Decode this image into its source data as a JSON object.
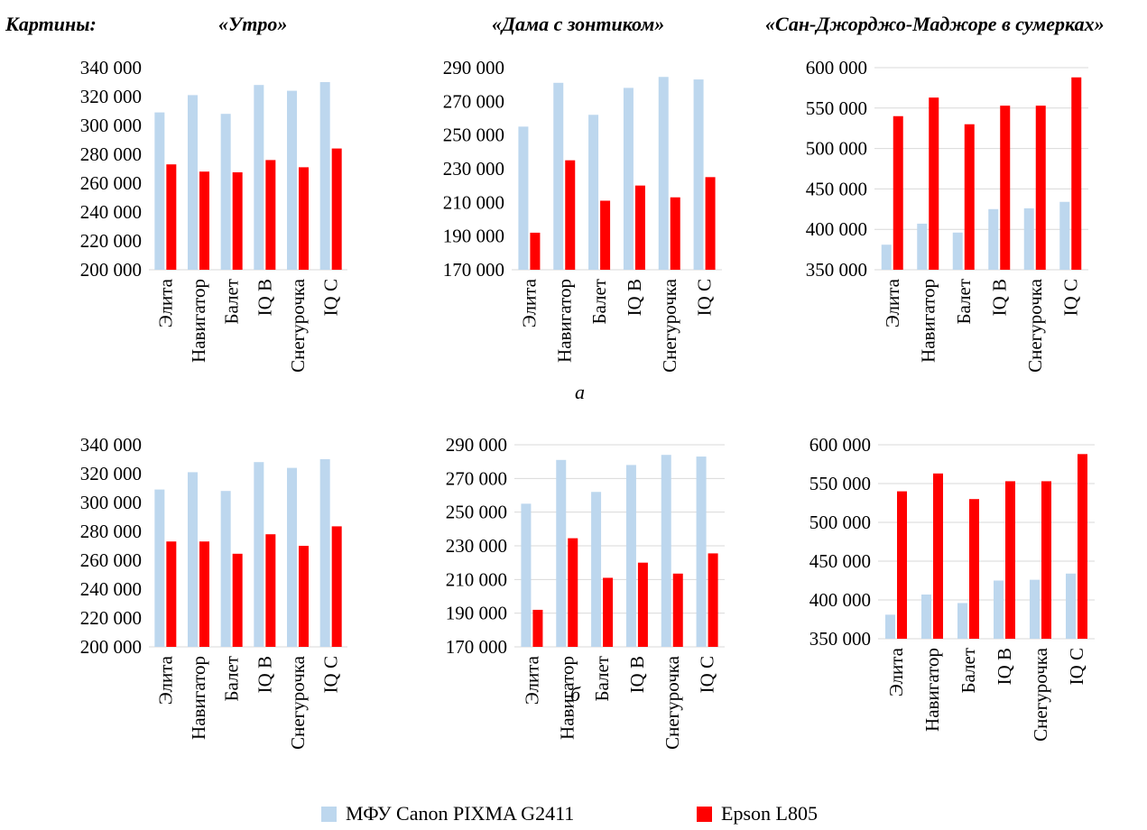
{
  "header": {
    "label": "Картины:",
    "titles": [
      "«Утро»",
      "«Дама с зонтиком»",
      "«Сан-Джорджо-Маджоре в сумерках»"
    ]
  },
  "panel_labels": {
    "a": "а",
    "b": "б"
  },
  "legend": [
    {
      "name": "МФУ Canon PIXMA G2411",
      "color": "#bdd7ee"
    },
    {
      "name": "Epson L805",
      "color": "#ff0000"
    }
  ],
  "chart_data": [
    {
      "type": "bar",
      "panel": "а",
      "title": "«Утро»",
      "categories": [
        "Элита",
        "Навигатор",
        "Балет",
        "IQ B",
        "Снегурочка",
        "IQ C"
      ],
      "ylim": [
        200000,
        340000
      ],
      "yticks": [
        "200 000",
        "220 000",
        "240 000",
        "260 000",
        "280 000",
        "300 000",
        "320 000",
        "340 000"
      ],
      "grid": false,
      "legend": "bottom",
      "series": [
        {
          "name": "МФУ Canon PIXMA G2411",
          "color": "#bdd7ee",
          "values": [
            309000,
            321000,
            308000,
            328000,
            324000,
            330000
          ]
        },
        {
          "name": "Epson L805",
          "color": "#ff0000",
          "values": [
            273000,
            268000,
            267500,
            276000,
            271000,
            284000
          ]
        }
      ]
    },
    {
      "type": "bar",
      "panel": "а",
      "title": "«Дама с зонтиком»",
      "categories": [
        "Элита",
        "Навигатор",
        "Балет",
        "IQ B",
        "Снегурочка",
        "IQ C"
      ],
      "ylim": [
        170000,
        290000
      ],
      "yticks": [
        "170 000",
        "190 000",
        "210 000",
        "230 000",
        "250 000",
        "270 000",
        "290 000"
      ],
      "grid": false,
      "legend": "bottom",
      "series": [
        {
          "name": "МФУ Canon PIXMA G2411",
          "color": "#bdd7ee",
          "values": [
            255000,
            281000,
            262000,
            278000,
            284500,
            283000
          ]
        },
        {
          "name": "Epson L805",
          "color": "#ff0000",
          "values": [
            192000,
            235000,
            211000,
            220000,
            213000,
            225000
          ]
        }
      ]
    },
    {
      "type": "bar",
      "panel": "а",
      "title": "«Сан-Джорджо-Маджоре в сумерках»",
      "categories": [
        "Элита",
        "Навигатор",
        "Балет",
        "IQ B",
        "Снегурочка",
        "IQ C"
      ],
      "ylim": [
        350000,
        600000
      ],
      "yticks": [
        "350 000",
        "400 000",
        "450 000",
        "500 000",
        "550 000",
        "600 000"
      ],
      "grid": true,
      "legend": "bottom",
      "series": [
        {
          "name": "МФУ Canon PIXMA G2411",
          "color": "#bdd7ee",
          "values": [
            381000,
            407000,
            396000,
            425000,
            426000,
            434000
          ]
        },
        {
          "name": "Epson L805",
          "color": "#ff0000",
          "values": [
            540000,
            563000,
            530000,
            553000,
            553000,
            588000
          ]
        }
      ]
    },
    {
      "type": "bar",
      "panel": "б",
      "title": "«Утро»",
      "categories": [
        "Элита",
        "Навигатор",
        "Балет",
        "IQ B",
        "Снегурочка",
        "IQ C"
      ],
      "ylim": [
        200000,
        340000
      ],
      "yticks": [
        "200 000",
        "220 000",
        "240 000",
        "260 000",
        "280 000",
        "300 000",
        "320 000",
        "340 000"
      ],
      "grid": false,
      "legend": "bottom",
      "series": [
        {
          "name": "МФУ Canon PIXMA G2411",
          "color": "#bdd7ee",
          "values": [
            309000,
            321000,
            308000,
            328000,
            324000,
            330000
          ]
        },
        {
          "name": "Epson L805",
          "color": "#ff0000",
          "values": [
            273000,
            273000,
            264500,
            278000,
            270000,
            283500
          ]
        }
      ]
    },
    {
      "type": "bar",
      "panel": "б",
      "title": "«Дама с зонтиком»",
      "categories": [
        "Элита",
        "Навигатор",
        "Балет",
        "IQ B",
        "Снегурочка",
        "IQ C"
      ],
      "ylim": [
        170000,
        290000
      ],
      "yticks": [
        "170 000",
        "190 000",
        "210 000",
        "230 000",
        "250 000",
        "270 000",
        "290 000"
      ],
      "grid": true,
      "legend": "bottom",
      "series": [
        {
          "name": "МФУ Canon PIXMA G2411",
          "color": "#bdd7ee",
          "values": [
            255000,
            281000,
            262000,
            278000,
            284000,
            283000
          ]
        },
        {
          "name": "Epson L805",
          "color": "#ff0000",
          "values": [
            192000,
            234500,
            211000,
            220000,
            213500,
            225500
          ]
        }
      ]
    },
    {
      "type": "bar",
      "panel": "б",
      "title": "«Сан-Джорджо-Маджоре в сумерках»",
      "categories": [
        "Элита",
        "Навигатор",
        "Балет",
        "IQ B",
        "Снегурочка",
        "IQ C"
      ],
      "ylim": [
        350000,
        600000
      ],
      "yticks": [
        "350 000",
        "400 000",
        "450 000",
        "500 000",
        "550 000",
        "600 000"
      ],
      "grid": true,
      "legend": "bottom",
      "series": [
        {
          "name": "МФУ Canon PIXMA G2411",
          "color": "#bdd7ee",
          "values": [
            381000,
            407000,
            396000,
            425000,
            426000,
            434000
          ]
        },
        {
          "name": "Epson L805",
          "color": "#ff0000",
          "values": [
            540000,
            563000,
            530000,
            553000,
            553000,
            588000
          ]
        }
      ]
    }
  ]
}
